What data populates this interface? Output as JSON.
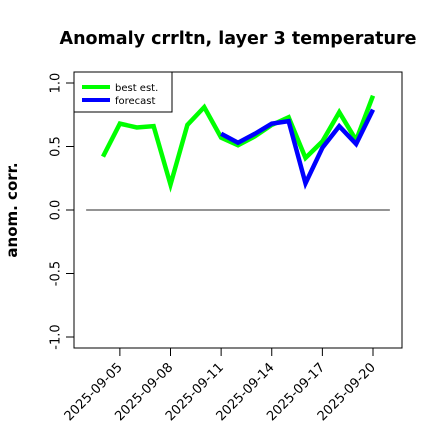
{
  "chart_data": {
    "type": "line",
    "title": "Anomaly crrltn, layer 3 temperature",
    "ylabel": "anom. corr.",
    "xlabel": "",
    "ylim": [
      -1.0,
      1.0
    ],
    "yticks": [
      -1.0,
      -0.5,
      0.0,
      0.5,
      1.0
    ],
    "ytick_labels": [
      "-1.0",
      "-0.5",
      "0.0",
      "0.5",
      "1.0"
    ],
    "x": [
      "2025-09-04",
      "2025-09-05",
      "2025-09-06",
      "2025-09-07",
      "2025-09-08",
      "2025-09-09",
      "2025-09-10",
      "2025-09-11",
      "2025-09-12",
      "2025-09-13",
      "2025-09-14",
      "2025-09-15",
      "2025-09-16",
      "2025-09-17",
      "2025-09-18",
      "2025-09-19",
      "2025-09-20"
    ],
    "xtick_labels": [
      "2025-09-05",
      "2025-09-08",
      "2025-09-11",
      "2025-09-14",
      "2025-09-17",
      "2025-09-20"
    ],
    "highlighted_tick": "2025-09-11",
    "highlight_color": "#228b22",
    "reference_line": 0.0,
    "legend_position": "top-left",
    "series": [
      {
        "name": "best est.",
        "color": "#00ff00",
        "values": [
          0.42,
          0.68,
          0.65,
          0.66,
          0.2,
          0.67,
          0.81,
          0.57,
          0.51,
          0.58,
          0.67,
          0.73,
          0.41,
          0.54,
          0.77,
          0.55,
          0.9
        ]
      },
      {
        "name": "forecast",
        "color": "#0000ff",
        "values": [
          null,
          null,
          null,
          null,
          null,
          null,
          null,
          0.6,
          0.53,
          0.6,
          0.68,
          0.7,
          0.21,
          0.49,
          0.66,
          0.52,
          0.79
        ]
      }
    ]
  }
}
